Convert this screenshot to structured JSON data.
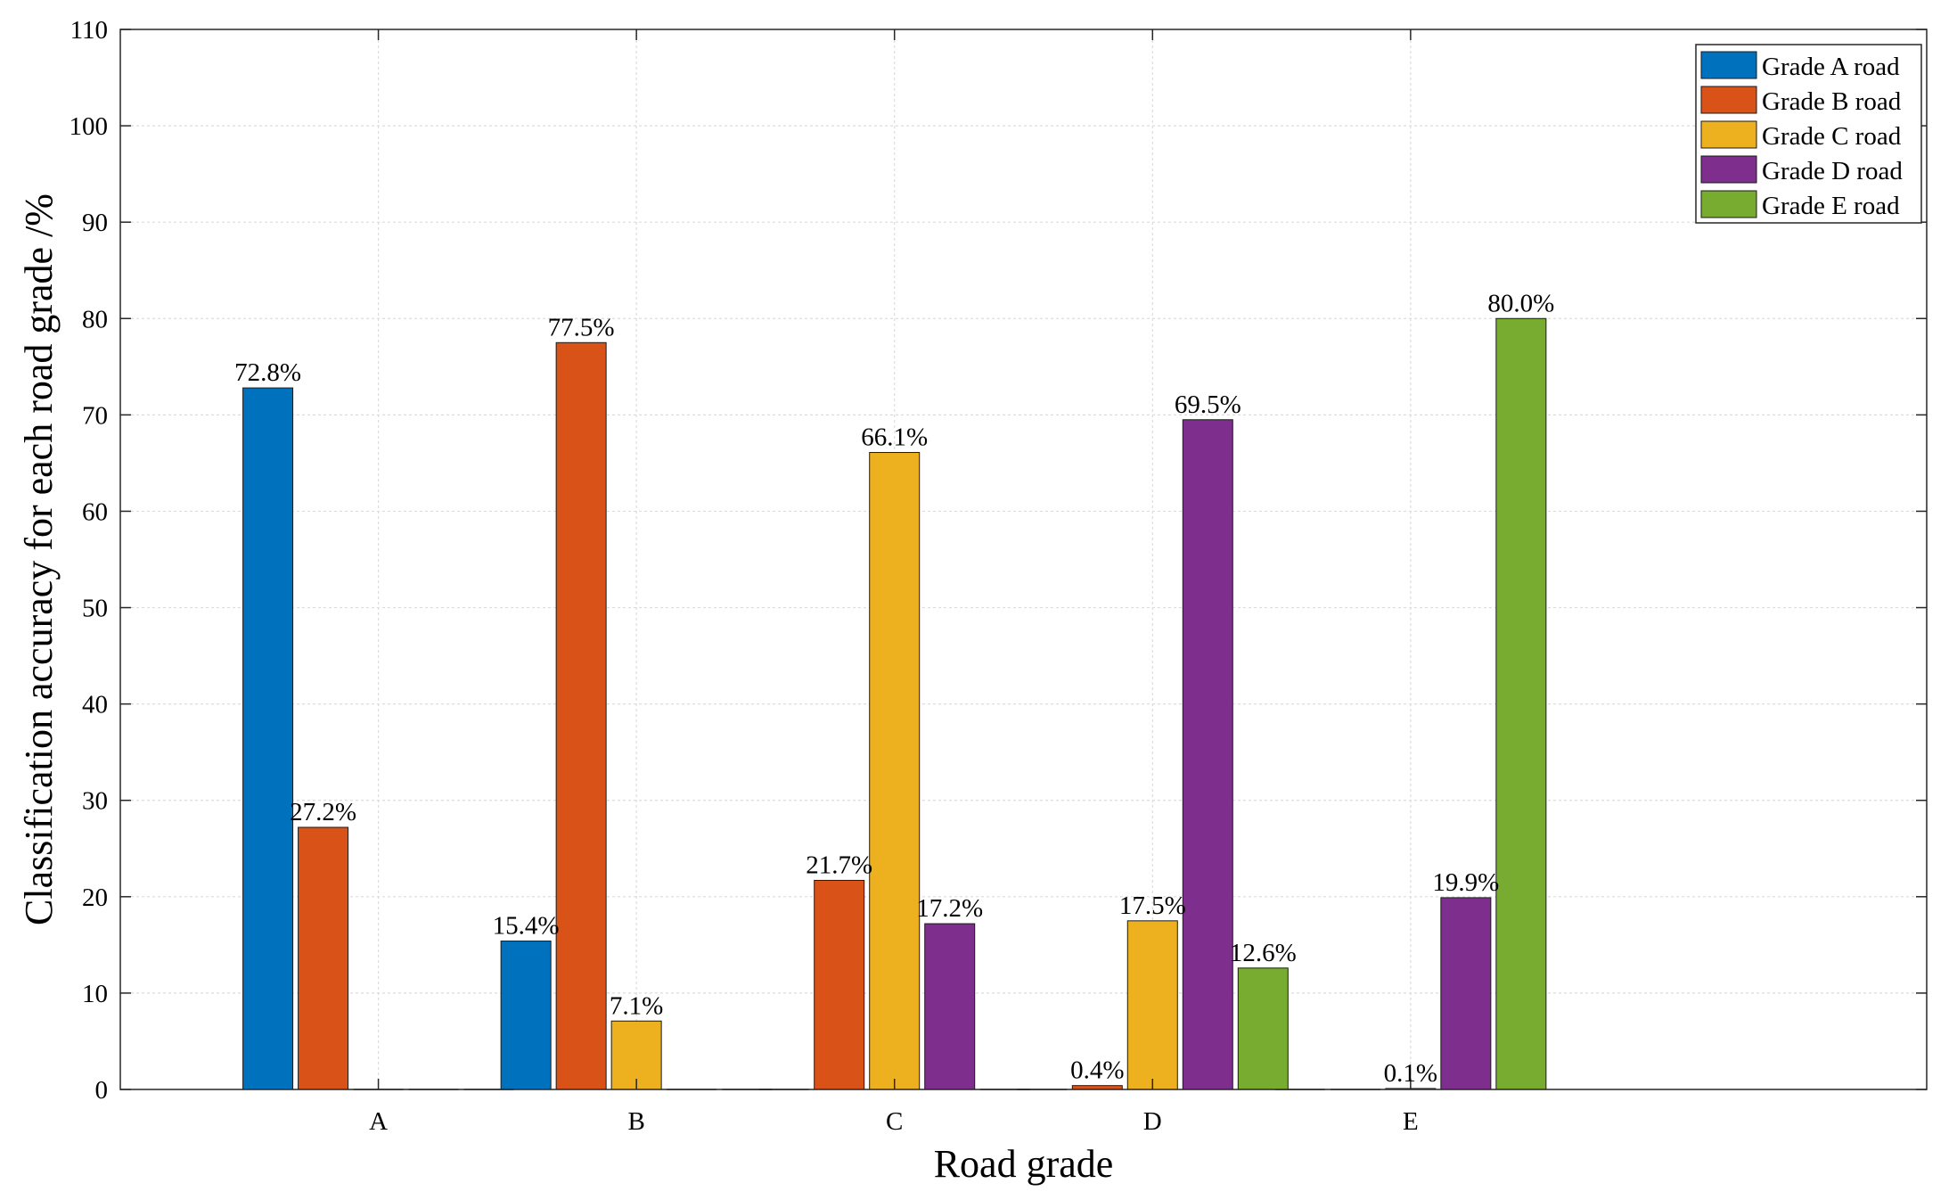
{
  "chart_data": {
    "type": "bar",
    "title": "",
    "xlabel": "Road grade",
    "ylabel": "Classification accuracy for each road grade /%",
    "ylim": [
      0,
      110
    ],
    "yticks": [
      "0",
      "10",
      "20",
      "30",
      "40",
      "50",
      "60",
      "70",
      "80",
      "90",
      "100",
      "110"
    ],
    "categories": [
      "A",
      "B",
      "C",
      "D",
      "E"
    ],
    "grid": true,
    "legend_position": "top-right",
    "series": [
      {
        "name": "Grade A road",
        "color": "#0072BD",
        "values": [
          72.8,
          15.4,
          0,
          0,
          0
        ],
        "labels": [
          "72.8%",
          "15.4%",
          "",
          "",
          ""
        ]
      },
      {
        "name": "Grade B road",
        "color": "#D95319",
        "values": [
          27.2,
          77.5,
          21.7,
          0.4,
          0
        ],
        "labels": [
          "27.2%",
          "77.5%",
          "21.7%",
          "0.4%",
          ""
        ]
      },
      {
        "name": "Grade C road",
        "color": "#EDB120",
        "values": [
          0,
          7.1,
          66.1,
          17.5,
          0.1
        ],
        "labels": [
          "",
          "7.1%",
          "66.1%",
          "17.5%",
          "0.1%"
        ]
      },
      {
        "name": "Grade D road",
        "color": "#7E2F8E",
        "values": [
          0,
          0,
          17.2,
          69.5,
          19.9
        ],
        "labels": [
          "",
          "",
          "17.2%",
          "69.5%",
          "19.9%"
        ]
      },
      {
        "name": "Grade E road",
        "color": "#77AC30",
        "values": [
          0,
          0,
          0,
          12.6,
          80.0
        ],
        "labels": [
          "",
          "",
          "",
          "12.6%",
          "80.0%"
        ]
      }
    ]
  }
}
